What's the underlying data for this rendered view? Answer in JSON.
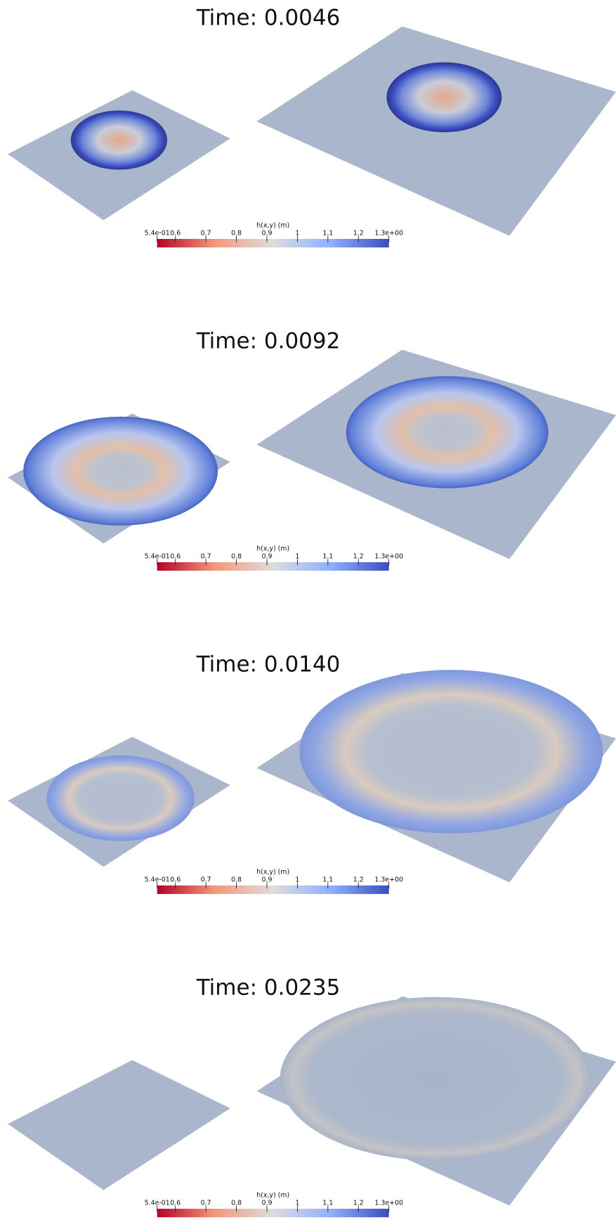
{
  "panels": [
    {
      "title": "Time: 0.0046",
      "colorbar": {
        "label": "h(x,y) (m)",
        "range": [
          0.54,
          1.3
        ],
        "ticks": [
          {
            "value": 0.54,
            "label": "5.4e-01"
          },
          0.6,
          0.7,
          0.8,
          0.9,
          1,
          1.1,
          1.2,
          {
            "value": 1.3,
            "label": "1.3e+00"
          }
        ]
      }
    },
    {
      "title": "Time: 0.0092",
      "colorbar": {
        "label": "h(x,y) (m)",
        "range": [
          0.54,
          1.3
        ],
        "ticks": [
          {
            "value": 0.54,
            "label": "5.4e-01"
          },
          0.6,
          0.7,
          0.8,
          0.9,
          1,
          1.1,
          1.2,
          {
            "value": 1.3,
            "label": "1.3e+00"
          }
        ]
      }
    },
    {
      "title": "Time: 0.0140",
      "colorbar": {
        "label": "h(x,y) (m)",
        "range": [
          0.54,
          1.3
        ],
        "ticks": [
          {
            "value": 0.54,
            "label": "5.4e-01"
          },
          0.6,
          0.7,
          0.8,
          0.9,
          1,
          1.1,
          1.2,
          {
            "value": 1.3,
            "label": "1.3e+00"
          }
        ]
      }
    },
    {
      "title": "Time: 0.0235",
      "colorbar": {
        "label": "h(x,y) (m)",
        "range": [
          0.54,
          1.3
        ],
        "ticks": [
          {
            "value": 0.54,
            "label": "5.4e-01"
          },
          0.6,
          0.7,
          0.8,
          0.9,
          1,
          1.1,
          1.2,
          {
            "value": 1.3,
            "label": "1.3e+00"
          }
        ]
      }
    }
  ]
}
